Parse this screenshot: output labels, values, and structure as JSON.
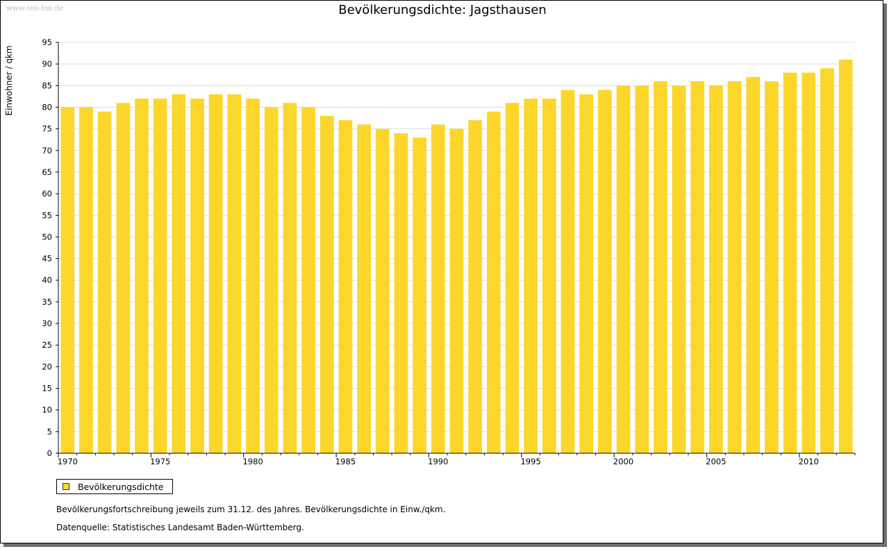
{
  "watermark": "www.leo-bw.de",
  "legend_label": "Bevölkerungsdichte",
  "note1": "Bevölkerungsfortschreibung jeweils zum 31.12. des Jahres. Bevölkerungsdichte in Einw./qkm.",
  "note2": "Datenquelle: Statistisches Landesamt Baden-Württemberg.",
  "colors": {
    "bar": "#fdd62c",
    "grid": "#dcdcdc",
    "axis": "#000000"
  },
  "chart_data": {
    "type": "bar",
    "title": "Bevölkerungsdichte: Jagsthausen",
    "xlabel": "",
    "ylabel": "Einwohner / qkm",
    "ylim": [
      0,
      95
    ],
    "yticks": [
      0,
      5,
      10,
      15,
      20,
      25,
      30,
      35,
      40,
      45,
      50,
      55,
      60,
      65,
      70,
      75,
      80,
      85,
      90,
      95
    ],
    "xtick_labels": [
      "1970",
      "1975",
      "1980",
      "1985",
      "1990",
      "1995",
      "2000",
      "2005",
      "2010"
    ],
    "grid": true,
    "legend": "bottom-left",
    "categories": [
      1970,
      1971,
      1972,
      1973,
      1974,
      1975,
      1976,
      1977,
      1978,
      1979,
      1980,
      1981,
      1982,
      1983,
      1984,
      1985,
      1986,
      1987,
      1988,
      1989,
      1990,
      1991,
      1992,
      1993,
      1994,
      1995,
      1996,
      1997,
      1998,
      1999,
      2000,
      2001,
      2002,
      2003,
      2004,
      2005,
      2006,
      2007,
      2008,
      2009,
      2010,
      2011,
      2012
    ],
    "series": [
      {
        "name": "Bevölkerungsdichte",
        "values": [
          80,
          80,
          79,
          81,
          82,
          82,
          83,
          82,
          83,
          83,
          82,
          80,
          81,
          80,
          78,
          77,
          76,
          75,
          74,
          73,
          76,
          75,
          77,
          79,
          81,
          82,
          82,
          84,
          83,
          84,
          85,
          85,
          86,
          85,
          86,
          85,
          86,
          87,
          86,
          88,
          88,
          89,
          91
        ]
      }
    ]
  }
}
